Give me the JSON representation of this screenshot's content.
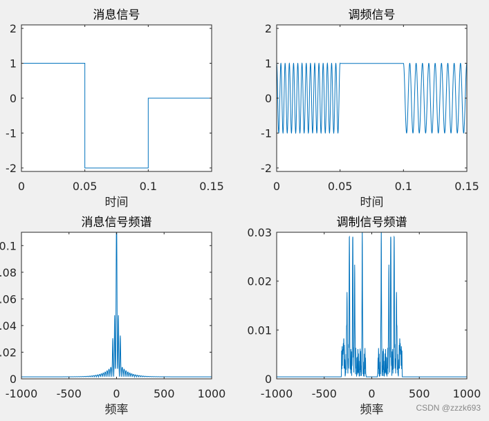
{
  "watermark": "CSDN @zzzk693",
  "colors": {
    "series": "#0072bd",
    "axis": "#262626",
    "background": "#f0f0f0",
    "plot_bg": "#ffffff"
  },
  "chart_data": [
    {
      "type": "line",
      "title": "消息信号",
      "xlabel": "时间",
      "ylabel": "",
      "xlim": [
        0,
        0.15
      ],
      "ylim": [
        -2.1,
        2.1
      ],
      "xticks": [
        "0",
        "0.05",
        "0.1",
        "0.15"
      ],
      "xtick_values": [
        0,
        0.05,
        0.1,
        0.15
      ],
      "yticks": [
        "-2",
        "-1",
        "0",
        "1",
        "2"
      ],
      "ytick_values": [
        -2,
        -1,
        0,
        1,
        2
      ],
      "series": [
        {
          "x": [
            0,
            0.05,
            0.05,
            0.1,
            0.1,
            0.15
          ],
          "y": [
            1,
            1,
            -2,
            -2,
            0,
            0
          ]
        }
      ]
    },
    {
      "type": "line",
      "title": "调频信号",
      "xlabel": "时间",
      "ylabel": "",
      "xlim": [
        0,
        0.15
      ],
      "ylim": [
        -2.1,
        2.1
      ],
      "xticks": [
        "0",
        "0.05",
        "0.1",
        "0.15"
      ],
      "xtick_values": [
        0,
        0.05,
        0.1,
        0.15
      ],
      "yticks": [
        "-2",
        "-1",
        "0",
        "1",
        "2"
      ],
      "ytick_values": [
        -2,
        -1,
        0,
        1,
        2
      ],
      "signal": {
        "carrier_hz": 200,
        "deviation_per_unit": 100,
        "message_segments": [
          {
            "from": 0,
            "to": 0.05,
            "level": 1
          },
          {
            "from": 0.05,
            "to": 0.1,
            "level": -2
          },
          {
            "from": 0.1,
            "to": 0.15,
            "level": 0
          }
        ]
      }
    },
    {
      "type": "line",
      "title": "消息信号频谱",
      "xlabel": "频率",
      "ylabel": "",
      "xlim": [
        -1000,
        1000
      ],
      "ylim": [
        0,
        0.11
      ],
      "xticks": [
        "-1000",
        "-500",
        "0",
        "500",
        "1000"
      ],
      "xtick_values": [
        -1000,
        -500,
        0,
        500,
        1000
      ],
      "yticks": [
        "0",
        "0.02",
        "0.04",
        "0.06",
        "0.08",
        "0.1"
      ],
      "ytick_values": [
        0,
        0.02,
        0.04,
        0.06,
        0.08,
        0.1
      ],
      "spectrum": {
        "peaks": [
          {
            "f": 0,
            "amp": 0.11,
            "width": 6
          },
          {
            "f": -20,
            "amp": 0.035,
            "width": 4
          },
          {
            "f": 20,
            "amp": 0.035,
            "width": 4
          },
          {
            "f": -40,
            "amp": 0.02,
            "width": 4
          },
          {
            "f": 40,
            "amp": 0.022,
            "width": 4
          }
        ],
        "sidelobe_spacing": 20,
        "sidelobe_decay": 90,
        "sidelobe_amp": 0.014,
        "floor": 0.0015
      }
    },
    {
      "type": "line",
      "title": "调制信号频谱",
      "xlabel": "频率",
      "ylabel": "",
      "xlim": [
        -1000,
        1000
      ],
      "ylim": [
        0,
        0.03
      ],
      "xticks": [
        "-1000",
        "-500",
        "0",
        "500",
        "1000"
      ],
      "xtick_values": [
        -1000,
        -500,
        0,
        500,
        1000
      ],
      "yticks": [
        "0",
        "0.01",
        "0.02",
        "0.03"
      ],
      "ytick_values": [
        0,
        0.01,
        0.02,
        0.03
      ],
      "spectrum": {
        "peaks": [
          {
            "f": -100,
            "amp": 0.025,
            "width": 4
          },
          {
            "f": 100,
            "amp": 0.025,
            "width": 4
          },
          {
            "f": -200,
            "amp": 0.0285,
            "width": 4
          },
          {
            "f": 200,
            "amp": 0.0285,
            "width": 4
          },
          {
            "f": -235,
            "amp": 0.027,
            "width": 4
          },
          {
            "f": 235,
            "amp": 0.027,
            "width": 4
          },
          {
            "f": -180,
            "amp": 0.022,
            "width": 4
          },
          {
            "f": 180,
            "amp": 0.022,
            "width": 4
          },
          {
            "f": -260,
            "amp": 0.013,
            "width": 5
          },
          {
            "f": 260,
            "amp": 0.013,
            "width": 5
          },
          {
            "f": -300,
            "amp": 0.005,
            "width": 8
          },
          {
            "f": 300,
            "amp": 0.005,
            "width": 8
          }
        ],
        "bands": [
          {
            "from": -320,
            "to": -60,
            "amp": 0.006
          },
          {
            "from": 60,
            "to": 320,
            "amp": 0.006
          }
        ],
        "floor": 0.0004
      }
    }
  ]
}
